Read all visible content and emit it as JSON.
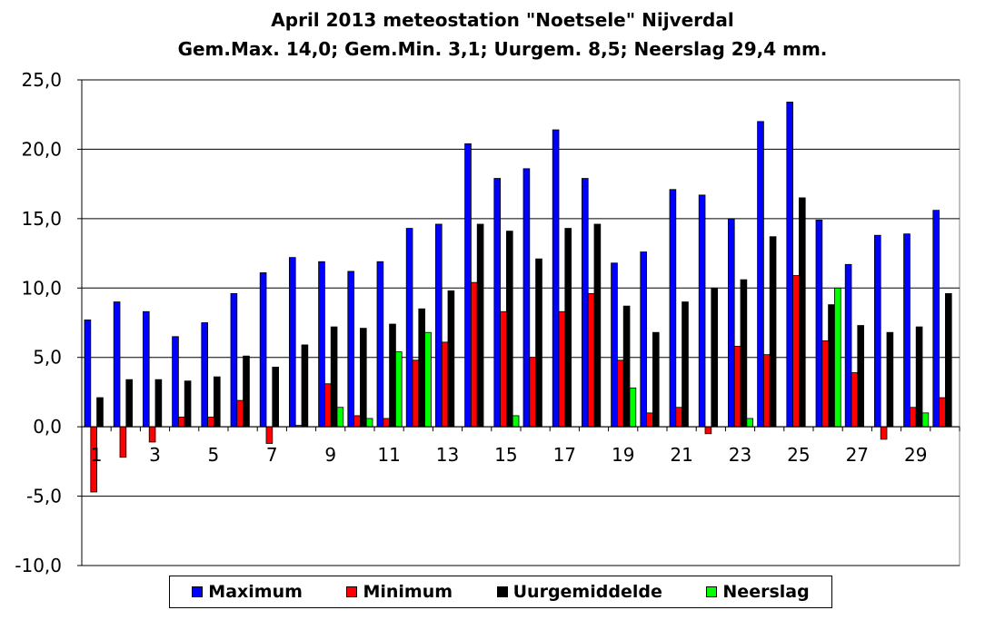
{
  "chart_data": {
    "type": "bar",
    "title": "April 2013 meteostation \"Noetsele\" Nijverdal",
    "subtitle": "Gem.Max. 14,0; Gem.Min. 3,1; Uurgem. 8,5; Neerslag 29,4  mm.",
    "xlabel": "",
    "ylabel": "",
    "ylim": [
      -10,
      25
    ],
    "yticks": [
      "25,0",
      "20,0",
      "15,0",
      "10,0",
      "5,0",
      "0,0",
      "-5,0",
      "-10,0"
    ],
    "ytick_values": [
      25,
      20,
      15,
      10,
      5,
      0,
      -5,
      -10
    ],
    "categories": [
      1,
      2,
      3,
      4,
      5,
      6,
      7,
      8,
      9,
      10,
      11,
      12,
      13,
      14,
      15,
      16,
      17,
      18,
      19,
      20,
      21,
      22,
      23,
      24,
      25,
      26,
      27,
      28,
      29,
      30
    ],
    "xtick_labels": [
      "1",
      "3",
      "5",
      "7",
      "9",
      "11",
      "13",
      "15",
      "17",
      "19",
      "21",
      "23",
      "25",
      "27",
      "29"
    ],
    "grid": true,
    "legend_position": "bottom",
    "series": [
      {
        "name": "Maximum",
        "color": "#0000ff",
        "values": [
          7.7,
          9.0,
          8.3,
          6.5,
          7.5,
          9.6,
          11.1,
          12.2,
          11.9,
          11.2,
          11.9,
          14.3,
          14.6,
          20.4,
          17.9,
          18.6,
          21.4,
          17.9,
          11.8,
          12.6,
          17.1,
          16.7,
          15.0,
          22.0,
          23.4,
          14.9,
          11.7,
          13.8,
          13.9,
          15.6
        ]
      },
      {
        "name": "Minimum",
        "color": "#ff0000",
        "values": [
          -4.7,
          -2.2,
          -1.1,
          0.7,
          0.7,
          1.9,
          -1.2,
          0.1,
          3.1,
          0.8,
          0.6,
          4.8,
          6.1,
          10.4,
          8.3,
          5.0,
          8.3,
          9.6,
          4.8,
          1.0,
          1.4,
          -0.5,
          5.8,
          5.2,
          10.9,
          6.2,
          3.9,
          -0.9,
          1.4,
          2.1
        ]
      },
      {
        "name": "Uurgemiddelde",
        "color": "#000000",
        "values": [
          2.1,
          3.4,
          3.4,
          3.3,
          3.6,
          5.1,
          4.3,
          5.9,
          7.2,
          7.1,
          7.4,
          8.5,
          9.8,
          14.6,
          14.1,
          12.1,
          14.3,
          14.6,
          8.7,
          6.8,
          9.0,
          10.0,
          10.6,
          13.7,
          16.5,
          8.8,
          7.3,
          6.8,
          7.2,
          9.6
        ]
      },
      {
        "name": "Neerslag",
        "color": "#00ff00",
        "values": [
          0,
          0,
          0,
          0,
          0,
          0,
          0,
          0,
          1.4,
          0.6,
          5.4,
          6.8,
          0,
          0,
          0.8,
          0,
          0,
          0,
          2.8,
          0,
          0,
          0,
          0.6,
          0,
          0,
          10.0,
          0,
          0,
          1.0,
          0
        ]
      }
    ]
  }
}
